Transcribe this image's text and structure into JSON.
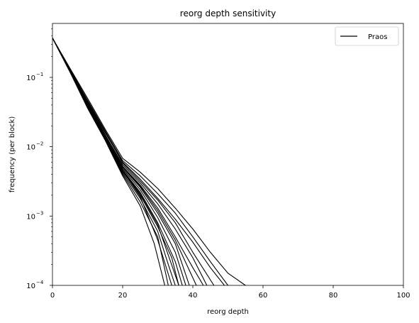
{
  "chart_data": {
    "type": "line",
    "title": "reorg depth sensitivity",
    "xlabel": "reorg depth",
    "ylabel": "frequency (per block)",
    "xlim": [
      0,
      100
    ],
    "ylim": [
      0.0001,
      0.6
    ],
    "yscale": "log",
    "grid": false,
    "legend_position": "top-right",
    "legend": [
      "Praos"
    ],
    "xticks": [
      0,
      20,
      40,
      60,
      80,
      100
    ],
    "xtick_labels": [
      "0",
      "20",
      "40",
      "60",
      "80",
      "100"
    ],
    "yticks": [
      0.0001,
      0.001,
      0.01,
      0.1
    ],
    "ytick_labels": [
      "10",
      "10",
      "10",
      "10"
    ],
    "ytick_exponents": [
      "−4",
      "−3",
      "−2",
      "−1"
    ],
    "line_color": "#000000",
    "series": [
      {
        "name": "Praos",
        "x": [
          0,
          5,
          10,
          15,
          20,
          25,
          30,
          35,
          40,
          45,
          50,
          55
        ],
        "y": [
          0.37,
          0.135,
          0.05,
          0.018,
          0.0068,
          0.0043,
          0.0025,
          0.0013,
          0.00065,
          0.0003,
          0.00015,
          0.0001
        ]
      },
      {
        "x": [
          0,
          5,
          10,
          15,
          20,
          25,
          30,
          35,
          40,
          45,
          50
        ],
        "y": [
          0.37,
          0.13,
          0.047,
          0.017,
          0.0063,
          0.0038,
          0.0021,
          0.0011,
          0.0005,
          0.00022,
          0.0001
        ]
      },
      {
        "x": [
          0,
          5,
          10,
          15,
          20,
          25,
          30,
          35,
          40,
          45,
          49
        ],
        "y": [
          0.37,
          0.128,
          0.045,
          0.016,
          0.006,
          0.0034,
          0.0018,
          0.0009,
          0.00042,
          0.00018,
          0.0001
        ]
      },
      {
        "x": [
          0,
          5,
          10,
          15,
          20,
          25,
          30,
          35,
          40,
          44
        ],
        "y": [
          0.37,
          0.127,
          0.044,
          0.015,
          0.0055,
          0.003,
          0.0015,
          0.00065,
          0.00025,
          0.0001
        ]
      },
      {
        "x": [
          0,
          5,
          10,
          15,
          20,
          25,
          30,
          35,
          40,
          43
        ],
        "y": [
          0.37,
          0.126,
          0.043,
          0.0148,
          0.0052,
          0.0028,
          0.0013,
          0.0005,
          0.00018,
          0.0001
        ]
      },
      {
        "x": [
          0,
          5,
          10,
          15,
          20,
          25,
          30,
          35,
          39
        ],
        "y": [
          0.37,
          0.125,
          0.042,
          0.0145,
          0.005,
          0.0026,
          0.0011,
          0.0004,
          0.0001
        ]
      },
      {
        "x": [
          0,
          5,
          10,
          15,
          20,
          25,
          30,
          35,
          38
        ],
        "y": [
          0.37,
          0.124,
          0.041,
          0.014,
          0.0048,
          0.0024,
          0.00095,
          0.0003,
          0.0001
        ]
      },
      {
        "x": [
          0,
          5,
          10,
          15,
          20,
          25,
          30,
          35,
          37
        ],
        "y": [
          0.37,
          0.123,
          0.04,
          0.0137,
          0.0046,
          0.0022,
          0.0008,
          0.00022,
          0.0001
        ]
      },
      {
        "x": [
          0,
          5,
          10,
          15,
          20,
          25,
          30,
          34,
          36
        ],
        "y": [
          0.37,
          0.122,
          0.039,
          0.0133,
          0.0044,
          0.002,
          0.0007,
          0.00025,
          0.0001
        ]
      },
      {
        "x": [
          0,
          5,
          10,
          15,
          20,
          25,
          30,
          33,
          35
        ],
        "y": [
          0.37,
          0.121,
          0.038,
          0.013,
          0.0042,
          0.0018,
          0.0006,
          0.0002,
          0.0001
        ]
      },
      {
        "x": [
          0,
          5,
          10,
          15,
          20,
          25,
          30,
          33
        ],
        "y": [
          0.37,
          0.12,
          0.037,
          0.0127,
          0.004,
          0.0016,
          0.0005,
          0.0001
        ]
      },
      {
        "x": [
          0,
          5,
          10,
          15,
          20,
          25,
          29,
          32
        ],
        "y": [
          0.37,
          0.119,
          0.036,
          0.0124,
          0.0038,
          0.0014,
          0.0004,
          0.0001
        ]
      },
      {
        "x": [
          0,
          5,
          10,
          15,
          20,
          25,
          30,
          34
        ],
        "y": [
          0.37,
          0.125,
          0.041,
          0.0136,
          0.0045,
          0.0019,
          0.00045,
          0.0001
        ]
      },
      {
        "x": [
          0,
          5,
          10,
          15,
          20,
          25,
          30,
          35,
          41
        ],
        "y": [
          0.37,
          0.127,
          0.043,
          0.015,
          0.0052,
          0.0027,
          0.0012,
          0.00045,
          0.0001
        ]
      },
      {
        "x": [
          0,
          5,
          10,
          15,
          20,
          25,
          30,
          35,
          40,
          46
        ],
        "y": [
          0.37,
          0.129,
          0.046,
          0.0165,
          0.0058,
          0.0032,
          0.0017,
          0.0008,
          0.0003,
          0.0001
        ]
      },
      {
        "x": [
          0,
          5,
          10,
          15,
          20,
          25,
          30,
          36
        ],
        "y": [
          0.37,
          0.124,
          0.04,
          0.0135,
          0.0045,
          0.0021,
          0.00075,
          0.0001
        ]
      }
    ]
  }
}
